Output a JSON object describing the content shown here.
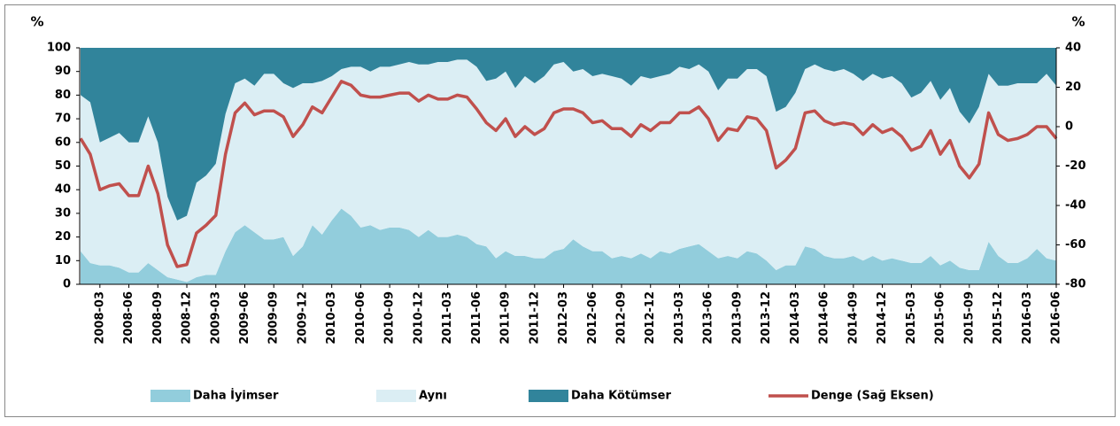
{
  "chart_data": {
    "type": "stacked-area-line",
    "y_label": "%",
    "y2_label": "%",
    "categories": [
      null,
      null,
      "2008-03",
      null,
      null,
      "2008-06",
      null,
      null,
      "2008-09",
      null,
      null,
      "2008-12",
      null,
      null,
      "2009-03",
      null,
      null,
      "2009-06",
      null,
      null,
      "2009-09",
      null,
      null,
      "2009-12",
      null,
      null,
      "2010-03",
      null,
      null,
      "2010-06",
      null,
      null,
      "2010-09",
      null,
      null,
      "2010-12",
      null,
      null,
      "2011-03",
      null,
      null,
      "2011-06",
      null,
      null,
      "2011-09",
      null,
      null,
      "2011-12",
      null,
      null,
      "2012-03",
      null,
      null,
      "2012-06",
      null,
      null,
      "2012-09",
      null,
      null,
      "2012-12",
      null,
      null,
      "2013-03",
      null,
      null,
      "2013-06",
      null,
      null,
      "2013-09",
      null,
      null,
      "2013-12",
      null,
      null,
      "2014-03",
      null,
      null,
      "2014-06",
      null,
      null,
      "2014-09",
      null,
      null,
      "2014-12",
      null,
      null,
      "2015-03",
      null,
      null,
      "2015-06",
      null,
      null,
      "2015-09",
      null,
      null,
      "2015-12",
      null,
      null,
      "2016-03",
      null,
      null,
      "2016-06"
    ],
    "series": [
      {
        "name": "Daha İyimser",
        "color": "#92cddc",
        "kind": "area",
        "values": [
          14,
          9,
          8,
          8,
          7,
          5,
          5,
          9,
          6,
          3,
          2,
          1,
          3,
          4,
          4,
          14,
          22,
          25,
          22,
          19,
          19,
          20,
          12,
          16,
          25,
          21,
          27,
          32,
          29,
          24,
          25,
          23,
          24,
          24,
          23,
          20,
          23,
          20,
          20,
          21,
          20,
          17,
          16,
          11,
          14,
          12,
          12,
          11,
          11,
          14,
          15,
          19,
          16,
          14,
          14,
          11,
          12,
          11,
          13,
          11,
          14,
          13,
          15,
          16,
          17,
          14,
          11,
          12,
          11,
          14,
          13,
          10,
          6,
          8,
          8,
          16,
          15,
          12,
          11,
          11,
          12,
          10,
          12,
          10,
          11,
          10,
          9,
          9,
          12,
          8,
          10,
          7,
          6,
          6,
          18,
          12,
          9,
          9,
          11,
          15,
          11,
          10
        ]
      },
      {
        "name": "Aynı",
        "color": "#dbeef4",
        "kind": "area",
        "values": [
          66,
          68,
          52,
          54,
          57,
          55,
          55,
          62,
          54,
          34,
          25,
          28,
          40,
          42,
          47,
          58,
          63,
          62,
          62,
          70,
          70,
          65,
          71,
          69,
          60,
          65,
          61,
          59,
          63,
          68,
          65,
          69,
          68,
          69,
          71,
          73,
          70,
          74,
          74,
          74,
          75,
          75,
          70,
          76,
          76,
          71,
          76,
          74,
          77,
          79,
          79,
          71,
          75,
          74,
          75,
          77,
          75,
          73,
          75,
          76,
          74,
          76,
          77,
          75,
          76,
          76,
          71,
          75,
          76,
          77,
          78,
          78,
          67,
          67,
          73,
          75,
          78,
          79,
          79,
          80,
          77,
          76,
          77,
          77,
          77,
          75,
          70,
          72,
          74,
          70,
          73,
          66,
          62,
          69,
          71,
          72,
          75,
          76,
          74,
          70,
          78,
          74
        ]
      },
      {
        "name": "Daha Kötümser",
        "color": "#31849b",
        "kind": "area",
        "values": [
          20,
          23,
          40,
          38,
          36,
          40,
          40,
          29,
          40,
          63,
          73,
          71,
          57,
          54,
          49,
          28,
          15,
          13,
          16,
          11,
          11,
          15,
          17,
          15,
          15,
          14,
          12,
          9,
          8,
          8,
          10,
          8,
          8,
          7,
          6,
          7,
          7,
          6,
          6,
          5,
          5,
          8,
          14,
          13,
          10,
          17,
          12,
          15,
          12,
          7,
          6,
          10,
          9,
          12,
          11,
          12,
          13,
          16,
          12,
          13,
          12,
          11,
          8,
          9,
          7,
          10,
          18,
          13,
          13,
          9,
          9,
          12,
          27,
          25,
          19,
          9,
          7,
          9,
          10,
          9,
          11,
          14,
          11,
          13,
          12,
          15,
          21,
          19,
          14,
          22,
          17,
          27,
          32,
          25,
          11,
          16,
          16,
          15,
          15,
          15,
          11,
          16
        ]
      },
      {
        "name": "Denge (Sağ Eksen)",
        "color": "#c0504d",
        "kind": "line",
        "axis": "y2",
        "values": [
          -6,
          -14,
          -32,
          -30,
          -29,
          -35,
          -35,
          -20,
          -34,
          -60,
          -71,
          -70,
          -54,
          -50,
          -45,
          -14,
          7,
          12,
          6,
          8,
          8,
          5,
          -5,
          1,
          10,
          7,
          15,
          23,
          21,
          16,
          15,
          15,
          16,
          17,
          17,
          13,
          16,
          14,
          14,
          16,
          15,
          9,
          2,
          -2,
          4,
          -5,
          0,
          -4,
          -1,
          7,
          9,
          9,
          7,
          2,
          3,
          -1,
          -1,
          -5,
          1,
          -2,
          2,
          2,
          7,
          7,
          10,
          4,
          -7,
          -1,
          -2,
          5,
          4,
          -2,
          -21,
          -17,
          -11,
          7,
          8,
          3,
          1,
          2,
          1,
          -4,
          1,
          -3,
          -1,
          -5,
          -12,
          -10,
          -2,
          -14,
          -7,
          -20,
          -26,
          -19,
          7,
          -4,
          -7,
          -6,
          -4,
          0,
          0,
          -6
        ]
      }
    ],
    "ylim": [
      0,
      100
    ],
    "yticks": [
      0,
      10,
      20,
      30,
      40,
      50,
      60,
      70,
      80,
      90,
      100
    ],
    "y2lim": [
      -80,
      40
    ],
    "y2ticks": [
      -80,
      -60,
      -40,
      -20,
      0,
      20,
      40
    ],
    "legend": "bottom"
  }
}
